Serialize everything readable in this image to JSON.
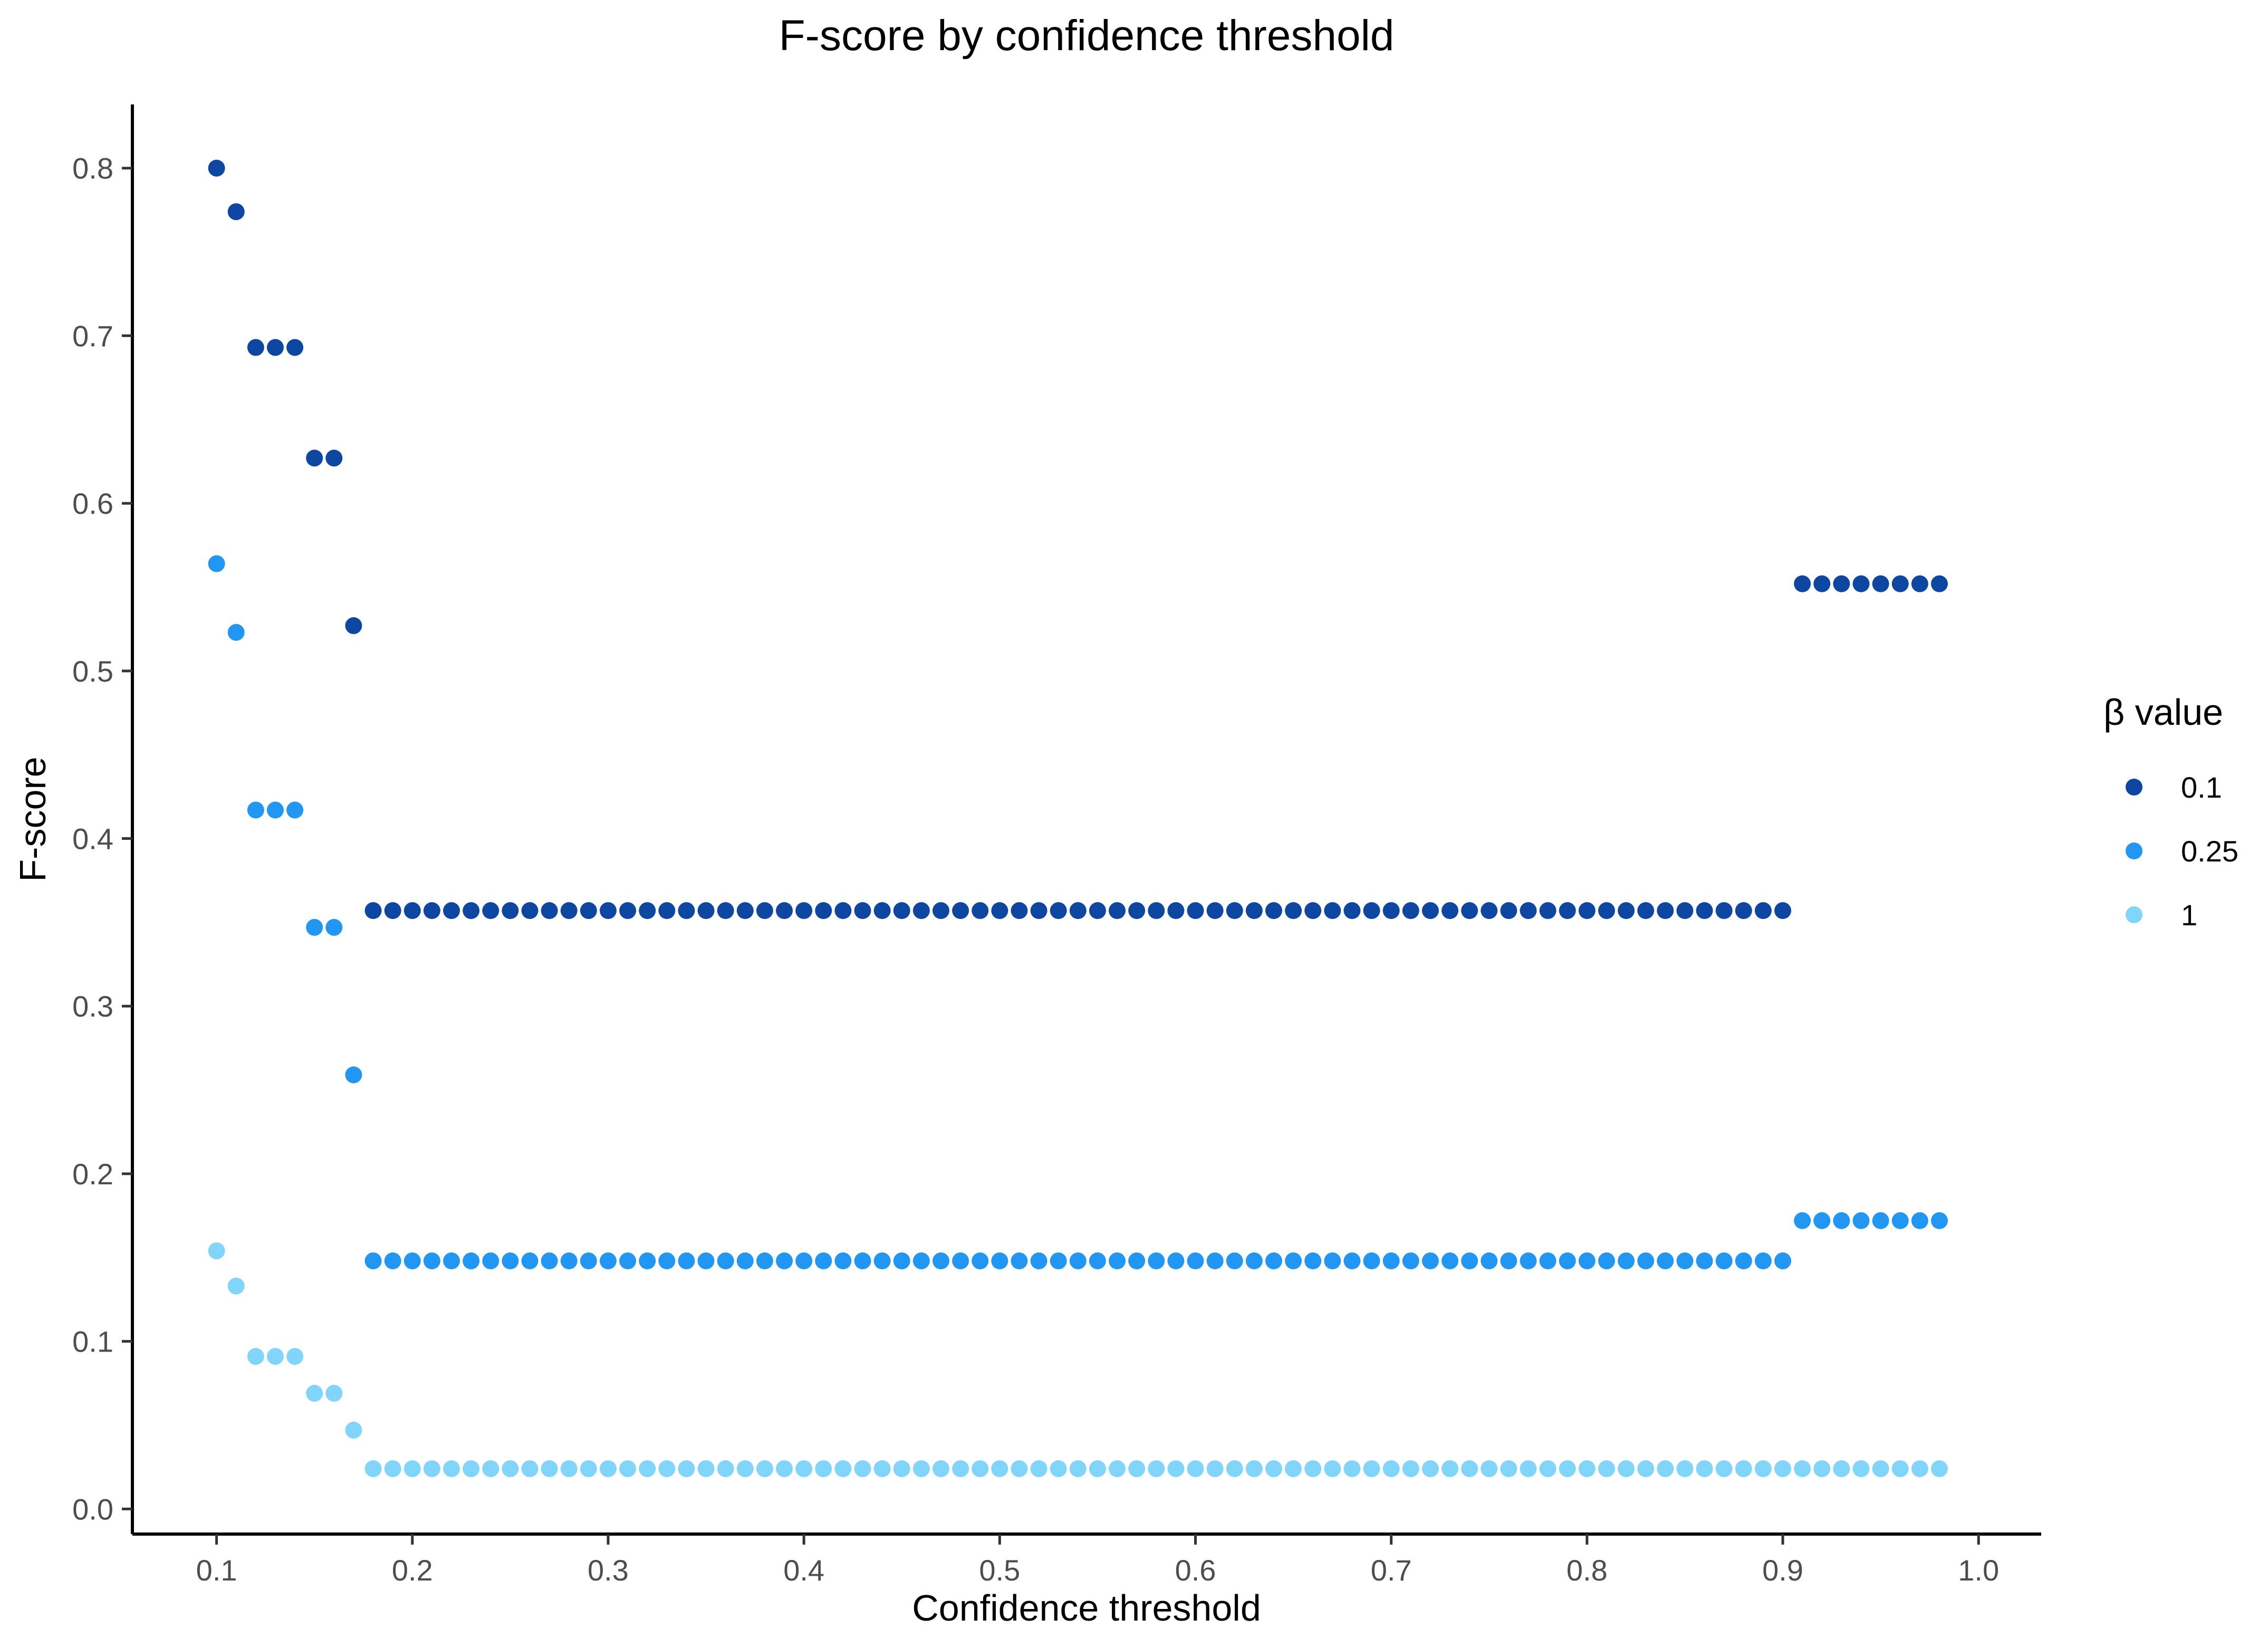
{
  "chart_data": {
    "type": "scatter",
    "title": "F-score by confidence threshold",
    "xlabel": "Confidence threshold",
    "ylabel": "F-score",
    "xlim": [
      0.057,
      1.032
    ],
    "ylim": [
      -0.015,
      0.838
    ],
    "xticks": [
      0.1,
      0.2,
      0.3,
      0.4,
      0.5,
      0.6,
      0.7,
      0.8,
      0.9,
      1.0
    ],
    "xtick_labels": [
      "0.1",
      "0.2",
      "0.3",
      "0.4",
      "0.5",
      "0.6",
      "0.7",
      "0.8",
      "0.9",
      "1.0"
    ],
    "yticks": [
      0.0,
      0.1,
      0.2,
      0.3,
      0.4,
      0.5,
      0.6,
      0.7,
      0.8
    ],
    "ytick_labels": [
      "0.0",
      "0.1",
      "0.2",
      "0.3",
      "0.4",
      "0.5",
      "0.6",
      "0.7",
      "0.8"
    ],
    "grid": false,
    "legend": {
      "title": "β value",
      "position": "right",
      "entries": [
        "0.1",
        "0.25",
        "1"
      ]
    },
    "x_range": {
      "start": 0.1,
      "end": 0.98,
      "step": 0.01
    },
    "series": [
      {
        "name": "0.1",
        "color": "#0D47A1",
        "segments": [
          {
            "x": [
              0.1
            ],
            "y": 0.8
          },
          {
            "x": [
              0.11
            ],
            "y": 0.774
          },
          {
            "x": [
              0.12,
              0.14
            ],
            "y": 0.693
          },
          {
            "x": [
              0.15,
              0.16
            ],
            "y": 0.627
          },
          {
            "x": [
              0.17
            ],
            "y": 0.527
          },
          {
            "x": [
              0.18,
              0.9
            ],
            "y": 0.357
          },
          {
            "x": [
              0.91,
              0.98
            ],
            "y": 0.552
          }
        ]
      },
      {
        "name": "0.25",
        "color": "#2196F3",
        "segments": [
          {
            "x": [
              0.1
            ],
            "y": 0.564
          },
          {
            "x": [
              0.11
            ],
            "y": 0.523
          },
          {
            "x": [
              0.12,
              0.14
            ],
            "y": 0.417
          },
          {
            "x": [
              0.15,
              0.16
            ],
            "y": 0.347
          },
          {
            "x": [
              0.17
            ],
            "y": 0.259
          },
          {
            "x": [
              0.18,
              0.9
            ],
            "y": 0.148
          },
          {
            "x": [
              0.91,
              0.98
            ],
            "y": 0.172
          }
        ]
      },
      {
        "name": "1",
        "color": "#81D4FA",
        "segments": [
          {
            "x": [
              0.1
            ],
            "y": 0.154
          },
          {
            "x": [
              0.11
            ],
            "y": 0.133
          },
          {
            "x": [
              0.12,
              0.14
            ],
            "y": 0.091
          },
          {
            "x": [
              0.15,
              0.16
            ],
            "y": 0.069
          },
          {
            "x": [
              0.17
            ],
            "y": 0.047
          },
          {
            "x": [
              0.18,
              0.98
            ],
            "y": 0.024
          }
        ]
      }
    ]
  }
}
